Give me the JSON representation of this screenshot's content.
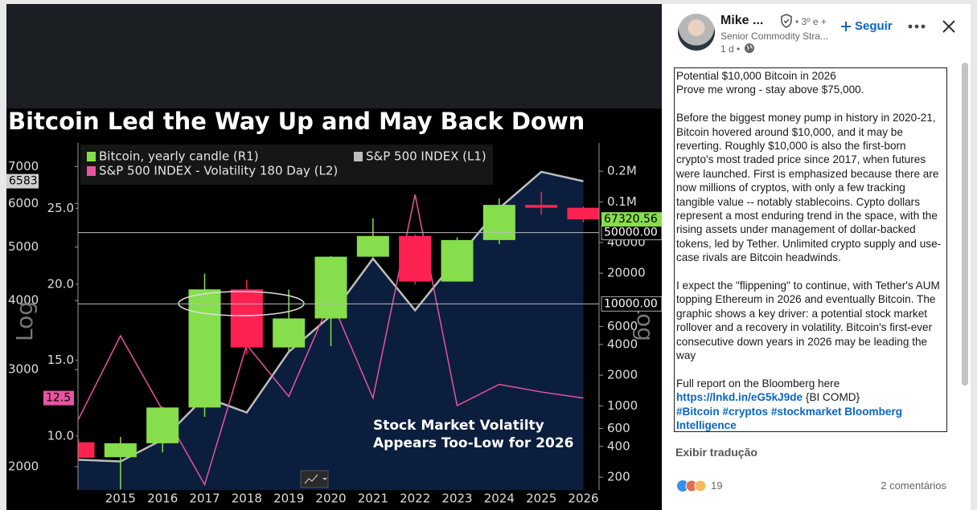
{
  "chart_data": {
    "type": "candlestick",
    "title": "Bitcoin Led the Way Up and May Back Down",
    "categories": [
      null,
      "2015",
      "2016",
      "2017",
      "2018",
      "2019",
      "2020",
      "2021",
      "2022",
      "2023",
      "2024",
      "2025",
      "2026"
    ],
    "series": [
      {
        "name": "Bitcoin, yearly candle (R1)",
        "type": "candlestick",
        "axis": "y2",
        "color": "#86de4c",
        "down_color": "#ff2152",
        "open": [
          440,
          314,
          430,
          964,
          13880,
          3740,
          7200,
          29000,
          46300,
          16550,
          42250,
          93400,
          87500
        ],
        "high": [
          470,
          495,
          980,
          19800,
          17200,
          13800,
          29300,
          69000,
          48000,
          45000,
          108000,
          126000,
          90000
        ],
        "low": [
          290,
          152,
          350,
          780,
          3200,
          3400,
          3850,
          28800,
          15500,
          16500,
          38500,
          74400,
          63000
        ],
        "close": [
          310,
          430,
          964,
          13880,
          3740,
          7200,
          29000,
          46300,
          16550,
          42250,
          93400,
          87500,
          67320.56
        ]
      },
      {
        "name": "S&P 500 INDEX (L1)",
        "type": "area",
        "axis": "y",
        "color": "#bdbdbd",
        "area_color": "#0c1e3d",
        "values": [
          2059,
          2044,
          2239,
          2674,
          2507,
          3231,
          3756,
          4766,
          3840,
          4770,
          5882,
          6845,
          6583
        ]
      },
      {
        "name": "S&P 500 INDEX - Volatility 180 Day (L2)",
        "type": "line",
        "axis": "y3",
        "color": "#e8559f",
        "values": [
          11.1,
          16.6,
          11.7,
          6.8,
          16.0,
          12.6,
          19.0,
          12.5,
          25.9,
          12.0,
          13.4,
          12.9,
          12.5
        ]
      }
    ],
    "ylim": [
      1815,
      7722
    ],
    "ylog": true,
    "yticks": [
      2000,
      3000,
      4000,
      5000,
      6000,
      7000
    ],
    "y2lim": [
      150,
      378000
    ],
    "y2log": true,
    "y2ticks": [
      200,
      400,
      600,
      1000,
      2000,
      4000,
      6000,
      20000,
      40000,
      {
        "value": 100000,
        "label": "0.1M"
      },
      {
        "value": 200000,
        "label": "0.2M"
      }
    ],
    "y3lim": [
      6.45,
      29.3
    ],
    "y3log": false,
    "y3ticks": [
      {
        "value": 10,
        "label": "10.0"
      },
      {
        "value": 15,
        "label": "15.0"
      },
      {
        "value": 20,
        "label": "20.0"
      },
      {
        "value": 25,
        "label": "25.0"
      }
    ],
    "y_label": "Log",
    "y2_label": "Log",
    "y2_reference_lines": [
      {
        "value": 50000,
        "label": "50000.00"
      },
      {
        "value": 10000,
        "label": "10000.00"
      }
    ],
    "annotation": [
      "Stock Market Volatilty",
      "Appears Too-Low for 2026"
    ],
    "grid": false
  },
  "post": {
    "author": {
      "name": "Mike ...",
      "degree": "• 3º e +",
      "headline": "Senior Commodity Stra...",
      "time": "1 d •"
    },
    "follow": "Seguir",
    "body": [
      [
        "Potential $10,000 Bitcoin in 2026",
        "Prove me wrong - stay above $75,000."
      ],
      "Before the biggest money pump in history in 2020-21, Bitcoin hovered around $10,000, and it may be reverting. Roughly $10,000 is also the first-born crypto's most traded price since 2017, when futures were launched. First is emphasized because there are now millions of cryptos, with only a few tracking tangible value -- notably stablecoins. Cypto dollars represent a most enduring trend in the space, with the rising assets under management of dollar-backed tokens, led by Tether. Unlimited crypto supply and use-case rivals are Bitcoin headwinds.",
      "I expect the \"flippening\" to continue, with Tether's AUM topping Ethereum in 2026 and eventually Bitcoin. The graphic shows a key driver: a potential stock market rollover and a recovery in volatility. Bitcoin's first-ever consecutive down years in 2026 may be leading the way"
    ],
    "report": {
      "text": "Full report on the Bloomberg here ",
      "link": "https://lnkd.in/eG5kJ9de",
      "suffix": " {BI COMD}",
      "tags": [
        "#Bitcoin",
        "#cryptos",
        "#stockmarket",
        "Bloomberg Intelligence"
      ]
    },
    "translate": "Exibir tradução",
    "reactions": 19,
    "comments": "2 comentários"
  }
}
